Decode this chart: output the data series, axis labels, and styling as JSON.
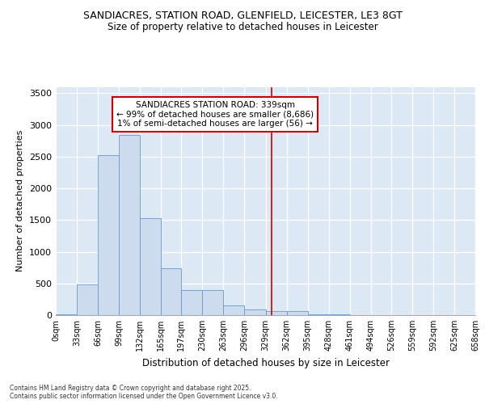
{
  "title": "SANDIACRES, STATION ROAD, GLENFIELD, LEICESTER, LE3 8GT",
  "subtitle": "Size of property relative to detached houses in Leicester",
  "xlabel": "Distribution of detached houses by size in Leicester",
  "ylabel": "Number of detached properties",
  "bar_color": "#ccdcee",
  "bar_edge_color": "#6699cc",
  "background_color": "#dde8f5",
  "annotation_text": "SANDIACRES STATION ROAD: 339sqm\n← 99% of detached houses are smaller (8,686)\n1% of semi-detached houses are larger (56) →",
  "annotation_box_color": "#cc0000",
  "vline_x": 339,
  "vline_color": "#cc0000",
  "bin_edges": [
    0,
    33,
    66,
    99,
    132,
    165,
    197,
    230,
    263,
    296,
    329,
    362,
    395,
    428,
    461,
    494,
    526,
    559,
    592,
    625,
    658
  ],
  "bar_heights": [
    10,
    480,
    2520,
    2840,
    1530,
    740,
    390,
    390,
    150,
    90,
    60,
    70,
    15,
    8,
    4,
    3,
    2,
    1,
    1,
    1
  ],
  "ylim": [
    0,
    3600
  ],
  "yticks": [
    0,
    500,
    1000,
    1500,
    2000,
    2500,
    3000,
    3500
  ],
  "footer_text": "Contains HM Land Registry data © Crown copyright and database right 2025.\nContains public sector information licensed under the Open Government Licence v3.0.",
  "tick_labels": [
    "0sqm",
    "33sqm",
    "66sqm",
    "99sqm",
    "132sqm",
    "165sqm",
    "197sqm",
    "230sqm",
    "263sqm",
    "296sqm",
    "329sqm",
    "362sqm",
    "395sqm",
    "428sqm",
    "461sqm",
    "494sqm",
    "526sqm",
    "559sqm",
    "592sqm",
    "625sqm",
    "658sqm"
  ]
}
